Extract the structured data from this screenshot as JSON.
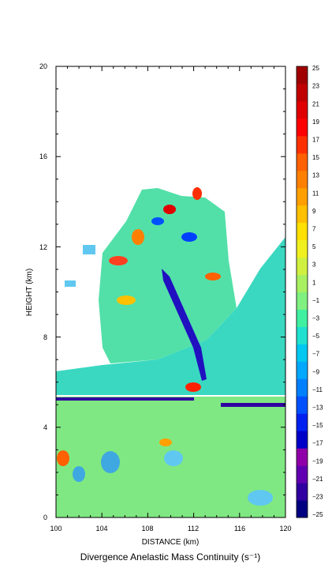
{
  "chart_data": {
    "type": "heatmap",
    "title": "Divergence Anelastic Mass Continuity (s⁻¹)",
    "xlabel": "DISTANCE (km)",
    "ylabel": "HEIGHT (km)",
    "xlim": [
      100,
      120
    ],
    "ylim": [
      0,
      20
    ],
    "x_ticks": [
      "100",
      "104",
      "108",
      "112",
      "116",
      "120"
    ],
    "y_ticks": [
      "0",
      "4",
      "8",
      "12",
      "16",
      "20"
    ],
    "colorbar": {
      "range": [
        -25,
        25
      ],
      "labels": [
        "25",
        "23",
        "21",
        "19",
        "17",
        "15",
        "13",
        "11",
        "9",
        "7",
        "5",
        "3",
        "1",
        "−1",
        "−3",
        "−5",
        "−7",
        "−9",
        "−11",
        "−13",
        "−15",
        "−17",
        "−19",
        "−21",
        "−23",
        "−25"
      ],
      "colors": [
        "#000080",
        "#3000a0",
        "#6000b0",
        "#9000a8",
        "#0000c8",
        "#0020f0",
        "#0050ff",
        "#0080ff",
        "#00a8ff",
        "#00c8f0",
        "#20e0d0",
        "#40f0a0",
        "#80f080",
        "#a8f060",
        "#d0f040",
        "#f0f020",
        "#ffe000",
        "#ffc000",
        "#ffa000",
        "#ff8000",
        "#ff6000",
        "#ff3000",
        "#ff0000",
        "#e00000",
        "#c00000",
        "#a00000"
      ]
    },
    "grid": false
  }
}
